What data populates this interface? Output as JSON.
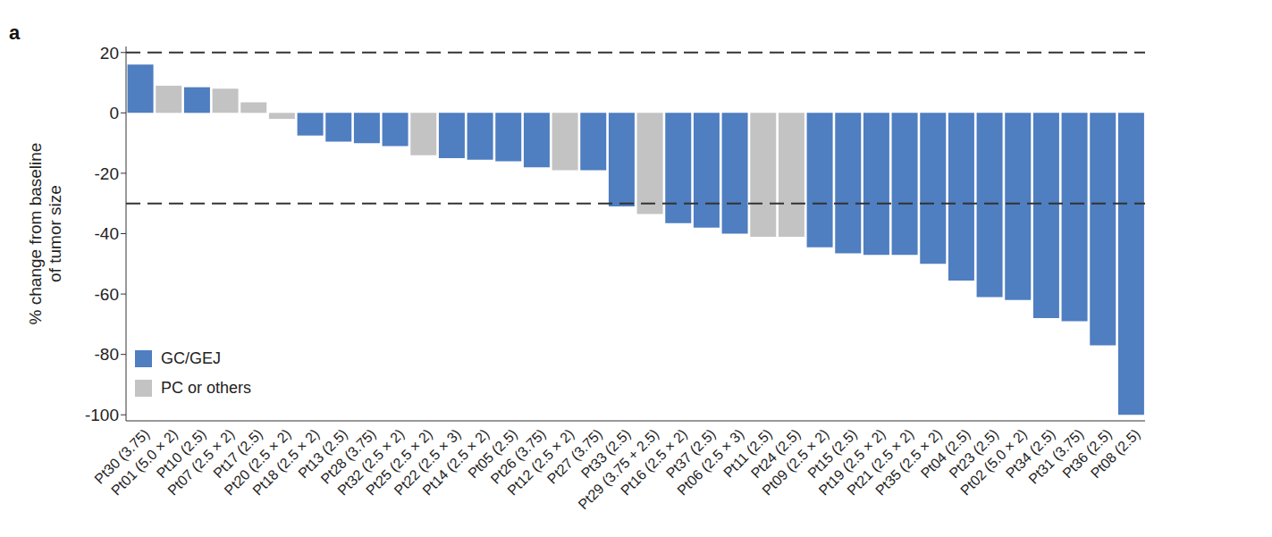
{
  "chart_data": {
    "type": "bar",
    "panel_label": "a",
    "y_label": "% change from baseline\nof tumor size",
    "categories": [
      "Pt30 (3.75)",
      "Pt01 (5.0 × 2)",
      "Pt10 (2.5)",
      "Pt07 (2.5 × 2)",
      "Pt17 (2.5)",
      "Pt20 (2.5 × 2)",
      "Pt18 (2.5 × 2)",
      "Pt13 (2.5)",
      "Pt28 (3.75)",
      "Pt32 (2.5 × 2)",
      "Pt25 (2.5 × 2)",
      "Pt22 (2.5 × 3)",
      "Pt14 (2.5 × 2)",
      "Pt05 (2.5)",
      "Pt26 (3.75)",
      "Pt12 (2.5 × 2)",
      "Pt27 (3.75)",
      "Pt33 (2.5)",
      "Pt29 (3.75 + 2.5)",
      "Pt16 (2.5 × 2)",
      "Pt37 (2.5)",
      "Pt06 (2.5 × 3)",
      "Pt11 (2.5)",
      "Pt24 (2.5)",
      "Pt09 (2.5 × 2)",
      "Pt15 (2.5)",
      "Pt19 (2.5 × 2)",
      "Pt21 (2.5 × 2)",
      "Pt35 (2.5 × 2)",
      "Pt04 (2.5)",
      "Pt23 (2.5)",
      "Pt02 (5.0 × 2)",
      "Pt34 (2.5)",
      "Pt31 (3.75)",
      "Pt36 (2.5)",
      "Pt08 (2.5)"
    ],
    "values": [
      16,
      9,
      8.5,
      8,
      3.5,
      -2,
      -7.5,
      -9.5,
      -10,
      -11,
      -14,
      -15,
      -15.5,
      -16,
      -18,
      -19,
      -19,
      -31,
      -33.5,
      -36.5,
      -38,
      -40,
      -41,
      -41,
      -44.5,
      -46.5,
      -47,
      -47,
      -50,
      -55.5,
      -61,
      -62,
      -68,
      -69,
      -77,
      -100
    ],
    "colors": [
      "#4f7ec1",
      "#c3c3c3",
      "#4f7ec1",
      "#c3c3c3",
      "#c3c3c3",
      "#c3c3c3",
      "#4f7ec1",
      "#4f7ec1",
      "#4f7ec1",
      "#4f7ec1",
      "#c3c3c3",
      "#4f7ec1",
      "#4f7ec1",
      "#4f7ec1",
      "#4f7ec1",
      "#c3c3c3",
      "#4f7ec1",
      "#4f7ec1",
      "#c3c3c3",
      "#4f7ec1",
      "#4f7ec1",
      "#4f7ec1",
      "#c3c3c3",
      "#c3c3c3",
      "#4f7ec1",
      "#4f7ec1",
      "#4f7ec1",
      "#4f7ec1",
      "#4f7ec1",
      "#4f7ec1",
      "#4f7ec1",
      "#4f7ec1",
      "#4f7ec1",
      "#4f7ec1",
      "#4f7ec1",
      "#4f7ec1"
    ],
    "legend": "lower left",
    "legend_entries": [
      {
        "name": "GC/GEJ",
        "color": "#4f7ec1"
      },
      {
        "name": "PC or others",
        "color": "#c3c3c3"
      }
    ],
    "reference_lines": [
      20,
      -30
    ],
    "ylim": [
      -102,
      22
    ],
    "yticks": [
      -100,
      -80,
      -60,
      -40,
      -20,
      0,
      20
    ],
    "grid": false
  }
}
